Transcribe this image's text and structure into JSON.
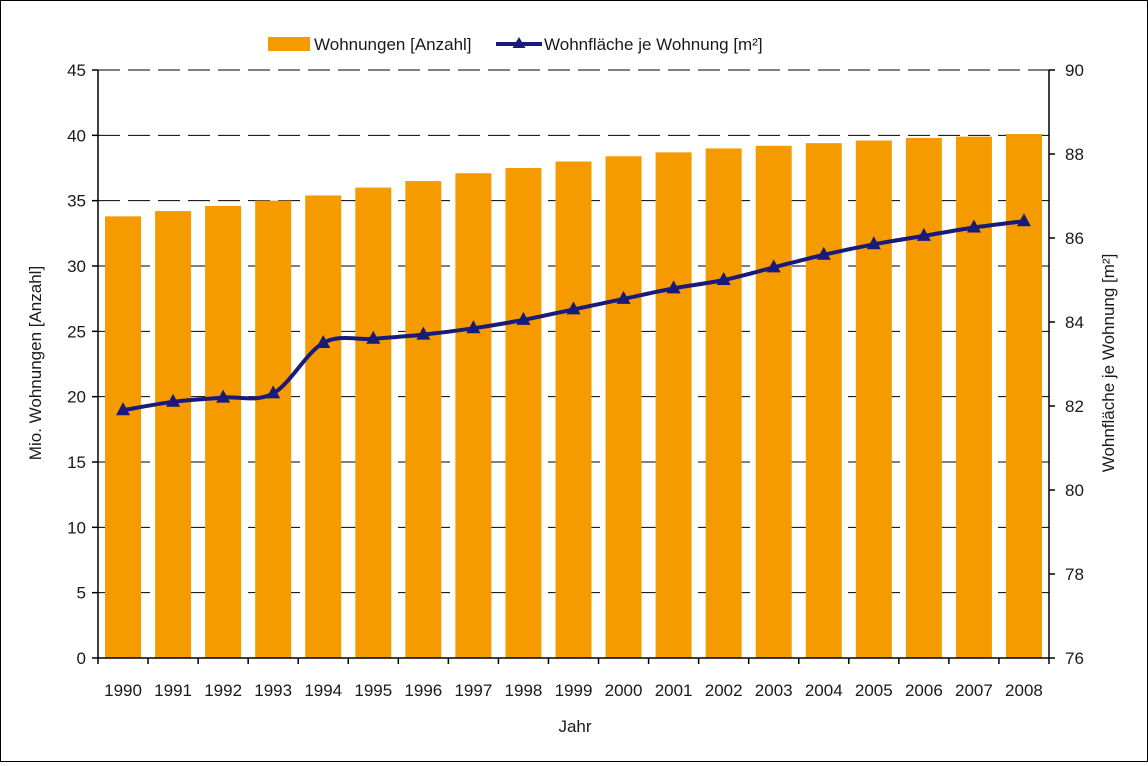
{
  "chart_data": {
    "type": "bar",
    "categories": [
      "1990",
      "1991",
      "1992",
      "1993",
      "1994",
      "1995",
      "1996",
      "1997",
      "1998",
      "1999",
      "2000",
      "2001",
      "2002",
      "2003",
      "2004",
      "2005",
      "2006",
      "2007",
      "2008"
    ],
    "xlabel": "Jahr",
    "ylabel": "Mio. Wohnungen [Anzahl]",
    "y2label": "Wohnfläche je Wohnung [m²]",
    "ylim": [
      0,
      45
    ],
    "y2lim": [
      76,
      90
    ],
    "yticks": [
      0,
      5,
      10,
      15,
      20,
      25,
      30,
      35,
      40,
      45
    ],
    "y2ticks": [
      76,
      78,
      80,
      82,
      84,
      86,
      88,
      90
    ],
    "grid": "horizontal, dashed",
    "legend": "top-center",
    "series": [
      {
        "name": "Wohnungen [Anzahl]",
        "type": "bar",
        "axis": "left",
        "color": "#f59b00",
        "values": [
          33.8,
          34.2,
          34.6,
          35.0,
          35.4,
          36.0,
          36.5,
          37.1,
          37.5,
          38.0,
          38.4,
          38.7,
          39.0,
          39.2,
          39.4,
          39.6,
          39.8,
          39.9,
          40.1
        ]
      },
      {
        "name": "Wohnfläche je Wohnung [m²]",
        "type": "line",
        "axis": "right",
        "color": "#1a1a7a",
        "marker": "triangle",
        "values": [
          81.9,
          82.1,
          82.2,
          82.3,
          83.5,
          83.6,
          83.7,
          83.85,
          84.05,
          84.3,
          84.55,
          84.8,
          85.0,
          85.3,
          85.6,
          85.85,
          86.05,
          86.25,
          86.4
        ]
      }
    ]
  }
}
